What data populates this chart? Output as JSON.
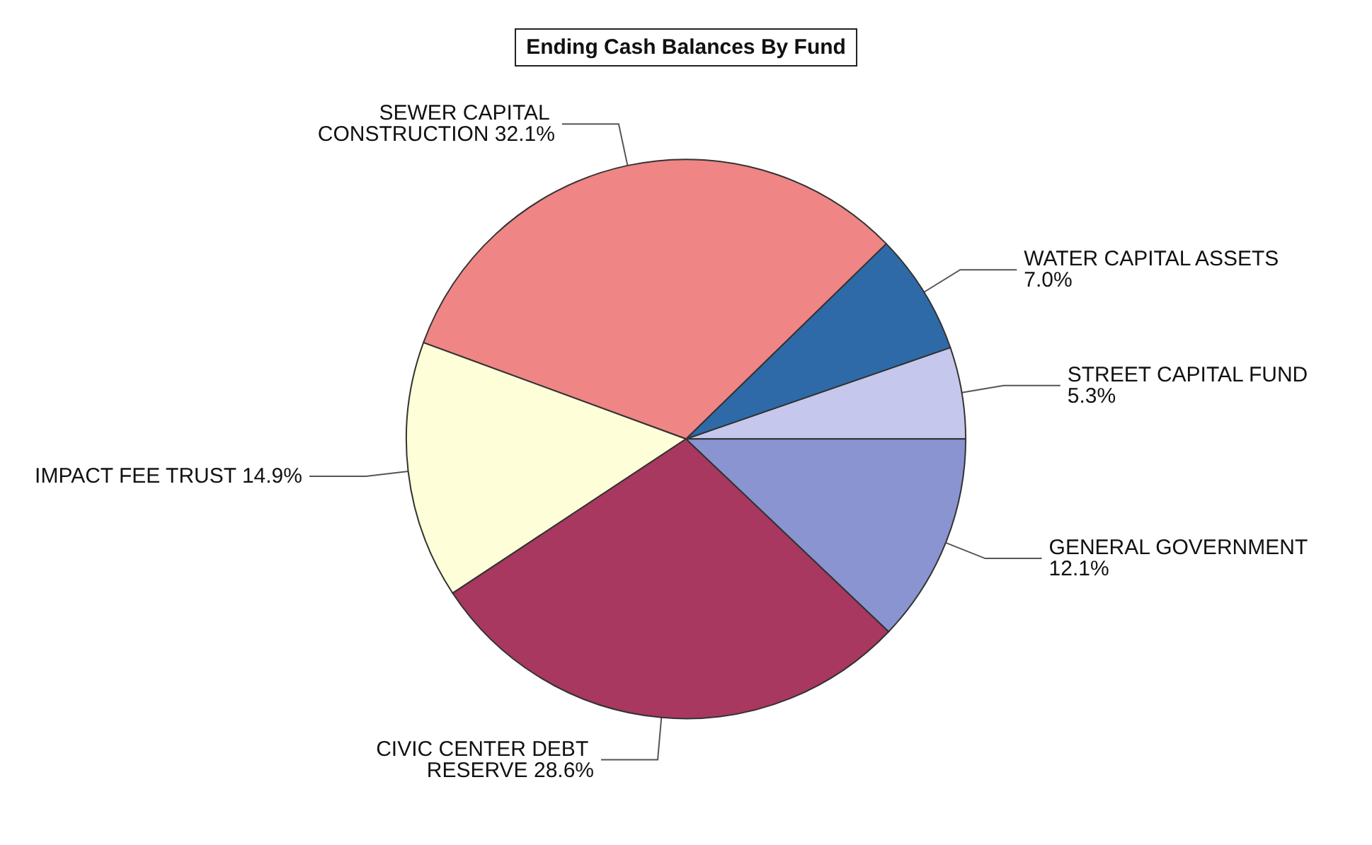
{
  "chart_data": {
    "type": "pie",
    "title": "Ending Cash Balances By Fund",
    "categories": [
      "STREET CAPITAL FUND",
      "WATER CAPITAL ASSETS",
      "SEWER CAPITAL CONSTRUCTION",
      "IMPACT FEE TRUST",
      "CIVIC CENTER DEBT RESERVE",
      "GENERAL GOVERNMENT"
    ],
    "values": [
      5.3,
      7.0,
      32.1,
      14.9,
      28.6,
      12.1
    ],
    "value_labels": [
      "5.3%",
      "7.0%",
      "32.1%",
      "14.9%",
      "28.6%",
      "12.1%"
    ],
    "colors": [
      "#c5c8ec",
      "#2f6aa8",
      "#ef8585",
      "#fefed8",
      "#a8385f",
      "#8a94d0"
    ]
  }
}
